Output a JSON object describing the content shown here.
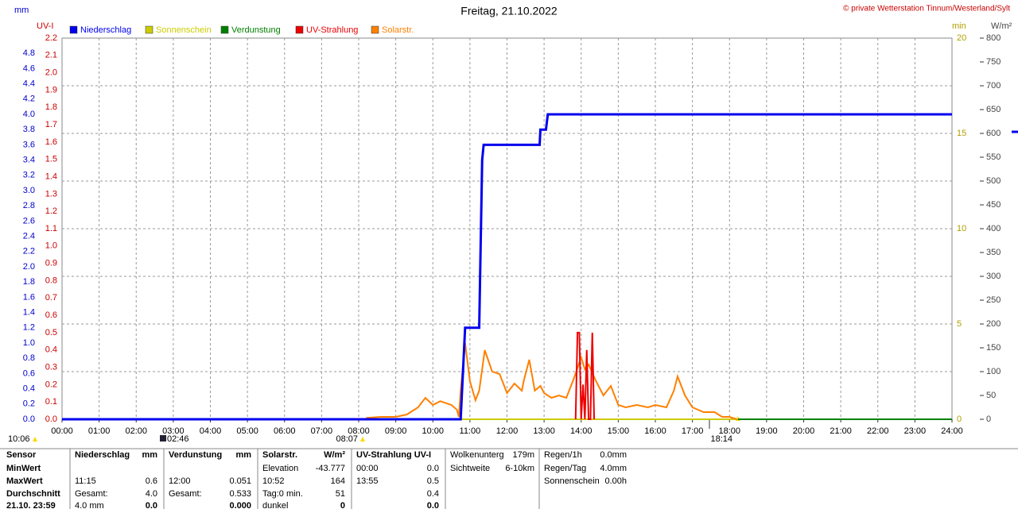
{
  "chart_data": {
    "type": "line",
    "title": "Freitag, 21.10.2022",
    "copyright": "© private Wetterstation Tinnum/Westerland/Sylt",
    "xlim": [
      0,
      24
    ],
    "xticks": [
      {
        "value": 0,
        "label": "00:00"
      },
      {
        "value": 1,
        "label": "01:00"
      },
      {
        "value": 2,
        "label": "02:00"
      },
      {
        "value": 3,
        "label": "03:00"
      },
      {
        "value": 4,
        "label": "04:00"
      },
      {
        "value": 5,
        "label": "05:00"
      },
      {
        "value": 6,
        "label": "06:00"
      },
      {
        "value": 7,
        "label": "07:00"
      },
      {
        "value": 8,
        "label": "08:00"
      },
      {
        "value": 9,
        "label": "09:00"
      },
      {
        "value": 10,
        "label": "10:00"
      },
      {
        "value": 11,
        "label": "11:00"
      },
      {
        "value": 12,
        "label": "12:00"
      },
      {
        "value": 13,
        "label": "13:00"
      },
      {
        "value": 14,
        "label": "14:00"
      },
      {
        "value": 15,
        "label": "15:00"
      },
      {
        "value": 16,
        "label": "16:00"
      },
      {
        "value": 17,
        "label": "17:00"
      },
      {
        "value": 18,
        "label": "18:00"
      },
      {
        "value": 19,
        "label": "19:00"
      },
      {
        "value": 20,
        "label": "20:00"
      },
      {
        "value": 21,
        "label": "21:00"
      },
      {
        "value": 22,
        "label": "22:00"
      },
      {
        "value": 23,
        "label": "23:00"
      },
      {
        "value": 24,
        "label": "24:00"
      }
    ],
    "grid": true,
    "axes": {
      "mm": {
        "label": "mm",
        "color": "#0000cc",
        "lim": [
          0,
          5
        ],
        "ticks": [
          {
            "value": 0,
            "label": "0.0"
          },
          0.2,
          0.4,
          0.6,
          0.8,
          {
            "value": 1,
            "label": "1.0"
          },
          1.2,
          1.4,
          1.6,
          1.8,
          {
            "value": 2,
            "label": "2.0"
          },
          2.2,
          2.4,
          2.6,
          2.8,
          {
            "value": 3,
            "label": "3.0"
          },
          3.2,
          3.4,
          3.6,
          3.8,
          {
            "value": 4,
            "label": "4.0"
          },
          4.2,
          4.4,
          4.6,
          4.8
        ]
      },
      "uv": {
        "label": "UV-I",
        "color": "#cc0000",
        "lim": [
          0,
          2.2
        ],
        "ticks": [
          {
            "value": 0,
            "label": "0.0"
          },
          0.1,
          0.2,
          0.3,
          0.4,
          0.5,
          0.6,
          0.7,
          0.8,
          0.9,
          {
            "value": 1,
            "label": "1.0"
          },
          1.1,
          1.2,
          1.3,
          1.4,
          1.5,
          1.6,
          1.7,
          1.8,
          1.9,
          {
            "value": 2,
            "label": "2.0"
          },
          2.1,
          2.2
        ]
      },
      "min": {
        "label": "min",
        "color": "#b0a000",
        "lim": [
          0,
          20
        ],
        "ticks": [
          0,
          5,
          10,
          15,
          20
        ]
      },
      "wm2": {
        "label": "W/m²",
        "color": "#444444",
        "lim": [
          0,
          800
        ],
        "ticks": [
          0,
          50,
          100,
          150,
          200,
          250,
          300,
          350,
          400,
          450,
          500,
          550,
          600,
          650,
          700,
          750,
          800
        ]
      }
    },
    "series": [
      {
        "name": "Niederschlag",
        "color": "#0000ee",
        "axis": "mm",
        "x": [
          0,
          10.75,
          10.87,
          11.25,
          11.33,
          11.37,
          12.88,
          12.9,
          13.05,
          13.1,
          24
        ],
        "values": [
          0,
          0,
          1.2,
          1.2,
          3.4,
          3.6,
          3.6,
          3.8,
          3.8,
          4.0,
          4.0
        ]
      },
      {
        "name": "Sonnenschein",
        "color": "#cccc00",
        "axis": "min",
        "x": [
          8.12,
          18.23
        ],
        "values": [
          0,
          0
        ]
      },
      {
        "name": "Verdunstung",
        "color": "#008000",
        "axis": "mm",
        "x": [
          8.12,
          24
        ],
        "values": [
          0,
          0
        ]
      },
      {
        "name": "UV-Strahlung",
        "color": "#ee0000",
        "axis": "uv",
        "x": [
          13.85,
          13.9,
          13.95,
          14.0,
          14.05,
          14.1,
          14.15,
          14.2,
          14.25,
          14.3,
          14.35
        ],
        "values": [
          0,
          0.5,
          0.5,
          0,
          0.2,
          0,
          0.4,
          0,
          0,
          0.5,
          0
        ]
      },
      {
        "name": "Solarstr.",
        "color": "#ff8000",
        "axis": "wm2",
        "x": [
          8.2,
          8.6,
          9.0,
          9.3,
          9.6,
          9.8,
          10.0,
          10.2,
          10.5,
          10.65,
          10.7,
          10.75,
          10.87,
          11.0,
          11.15,
          11.25,
          11.4,
          11.6,
          11.8,
          12.0,
          12.2,
          12.4,
          12.45,
          12.6,
          12.75,
          12.9,
          13.0,
          13.2,
          13.4,
          13.6,
          13.8,
          14.0,
          14.1,
          14.2,
          14.4,
          14.6,
          14.8,
          15.0,
          15.2,
          15.5,
          15.8,
          16.0,
          16.3,
          16.5,
          16.6,
          16.8,
          17.0,
          17.3,
          17.6,
          17.8,
          18.0,
          18.2
        ],
        "values": [
          3,
          5,
          5,
          10,
          25,
          45,
          30,
          38,
          30,
          20,
          5,
          60,
          160,
          80,
          40,
          60,
          145,
          100,
          95,
          55,
          75,
          60,
          80,
          125,
          60,
          70,
          55,
          45,
          50,
          45,
          85,
          130,
          105,
          115,
          80,
          50,
          70,
          30,
          25,
          30,
          25,
          30,
          25,
          60,
          90,
          50,
          25,
          15,
          15,
          5,
          5,
          0
        ]
      }
    ],
    "annotations": [
      "10:06",
      "02:46",
      "08:07",
      "18:14"
    ]
  },
  "footer": {
    "blocks": [
      {
        "rows": [
          [
            "Sensor",
            null
          ],
          [
            "MinWert",
            null
          ],
          [
            "MaxWert",
            null
          ],
          [
            "Durchschnitt",
            null
          ],
          [
            "21.10. 23:59",
            null
          ]
        ]
      },
      {
        "rows": [
          [
            "Niederschlag",
            "mm"
          ],
          [
            null,
            null
          ],
          [
            "11:15",
            "0.6"
          ],
          [
            "Gesamt:",
            "4.0"
          ],
          [
            "4.0 mm",
            "0.0"
          ]
        ]
      },
      {
        "rows": [
          [
            "Verdunstung",
            "mm"
          ],
          [
            null,
            null
          ],
          [
            "12:00",
            "0.051"
          ],
          [
            "Gesamt:",
            "0.533"
          ],
          [
            null,
            "0.000"
          ]
        ]
      },
      {
        "rows": [
          [
            "Solarstr.",
            "W/m²"
          ],
          [
            "Elevation",
            "-43.777"
          ],
          [
            "10:52",
            "164"
          ],
          [
            "Tag:0 min.",
            "51"
          ],
          [
            "dunkel",
            "0"
          ]
        ]
      },
      {
        "rows": [
          [
            "UV-Strahlung UV-I",
            null
          ],
          [
            "00:00",
            "0.0"
          ],
          [
            "13:55",
            "0.5"
          ],
          [
            null,
            "0.4"
          ],
          [
            null,
            "0.0"
          ]
        ]
      },
      {
        "rows": [
          [
            "Wolkenunterg",
            "179m"
          ],
          [
            "Sichtweite",
            "6-10km"
          ],
          [
            null,
            null
          ],
          [
            null,
            null
          ],
          [
            null,
            null
          ]
        ]
      },
      {
        "rows": [
          [
            "Regen/1h",
            "0.0mm"
          ],
          [
            "Regen/Tag",
            "4.0mm"
          ],
          [
            "Sonnenschein",
            "0.00h"
          ],
          [
            null,
            null
          ],
          [
            null,
            null
          ]
        ]
      }
    ]
  }
}
